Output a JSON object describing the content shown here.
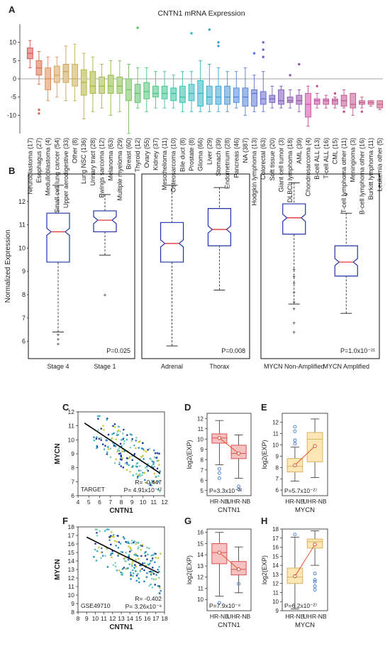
{
  "figure": {
    "panel_labels": [
      "A",
      "B",
      "C",
      "D",
      "E",
      "F",
      "G",
      "H"
    ]
  },
  "chart_data": [
    {
      "panel": "A",
      "type": "box",
      "title": "CNTN1 mRNA Expression",
      "ylim": [
        -15,
        15
      ],
      "yticks": [
        -10,
        -5,
        0,
        5,
        10
      ],
      "grid": false,
      "categories": [
        "Neuroblastoma (17)",
        "Esophagus (27)",
        "Medulloblastoma (4)",
        "Small cell lung cancer (54)",
        "Upper aerodigestive (33)",
        "Other (8)",
        "Lung NSC (136)",
        "Urinary tract (28)",
        "Ewings sarcoma (12)",
        "Melanoma (63)",
        "Multiple myeloma (29)",
        "Breast (60)",
        "Thyroid (12)",
        "Ovary (55)",
        "Kidney (37)",
        "Mesothelioma (11)",
        "Osteosarcoma (10)",
        "Bile duct (8)",
        "Prostate (8)",
        "Glioma (66)",
        "Liver (29)",
        "Stomach (39)",
        "Endometrium (28)",
        "Pancreas (46)",
        "NA (387)",
        "Hodgkin lymphoma (13)",
        "Colorectal (63)",
        "Soft tissue (20)",
        "Giant cell tumor (3)",
        "DLBCL lymphoma (18)",
        "AML (39)",
        "Chondrosarcoma (4)",
        "B-cell ALL (13)",
        "T-cell ALL (16)",
        "CML (15)",
        "T-cell lymphoma other (11)",
        "Meningioma (3)",
        "B-cell lymphoma other (16)",
        "Burkitt lymphoma (11)",
        "Leukemia other (5)"
      ],
      "colors": [
        "#d9534f",
        "#dc6a4a",
        "#e08a52",
        "#d9a057",
        "#caa154",
        "#c9b04e",
        "#b8b23c",
        "#a7b238",
        "#a1b945",
        "#8fba3f",
        "#86bd4c",
        "#73c35a",
        "#58c266",
        "#4fc474",
        "#43c582",
        "#3cc490",
        "#34c29e",
        "#2fc0ad",
        "#2cbcbc",
        "#2fb5c6",
        "#33acd0",
        "#3aa2d6",
        "#4397d8",
        "#4a8bd8",
        "#527fd6",
        "#5a73d2",
        "#6468cc",
        "#6e5fc4",
        "#7c58bc",
        "#8a54b6",
        "#9650b0",
        "#cc4fa6",
        "#c64fa0",
        "#c2509a",
        "#bf5196",
        "#bd5290",
        "#c3578f",
        "#c4588c",
        "#c65a87",
        "#c75c82"
      ],
      "stats": [
        [
          3,
          5.5,
          7,
          8.5,
          10.5
        ],
        [
          -1.5,
          1,
          3,
          5,
          7.5
        ],
        [
          -6,
          -3,
          0,
          3,
          6
        ],
        [
          -5,
          -1,
          1,
          3.5,
          6
        ],
        [
          -6,
          -1,
          2,
          4,
          9
        ],
        [
          -6,
          -2,
          0,
          4,
          9.5
        ],
        [
          -11,
          -4.5,
          -1,
          2.5,
          7
        ],
        [
          -9,
          -4,
          -2,
          2,
          6
        ],
        [
          -8,
          -4,
          -2,
          0.5,
          4
        ],
        [
          -10,
          -4,
          -2,
          1,
          5
        ],
        [
          -9,
          -4,
          -2,
          0.5,
          5
        ],
        [
          -15,
          -6,
          -3,
          0,
          4
        ],
        [
          -8,
          -6.5,
          -4,
          -1.5,
          3
        ],
        [
          -9,
          -5.5,
          -3.5,
          -1,
          3
        ],
        [
          -8,
          -5,
          -4,
          -2,
          2
        ],
        [
          -8,
          -5.5,
          -4,
          -2,
          2
        ],
        [
          -8,
          -6,
          -4,
          -2.5,
          1
        ],
        [
          -9,
          -6.5,
          -5,
          -2,
          2
        ],
        [
          -9,
          -6,
          -4,
          -1.5,
          2
        ],
        [
          -9,
          -7.5,
          -4,
          -0.5,
          5
        ],
        [
          -9,
          -7,
          -5,
          -2,
          4
        ],
        [
          -9,
          -7,
          -5,
          -2,
          3
        ],
        [
          -9,
          -7,
          -5,
          -2,
          2
        ],
        [
          -8,
          -6.5,
          -5,
          -2.5,
          2
        ],
        [
          -10,
          -7.5,
          -5,
          -2.5,
          3
        ],
        [
          -9,
          -7.5,
          -4,
          -3,
          1
        ],
        [
          -9,
          -7,
          -5.5,
          -3.5,
          2
        ],
        [
          -8,
          -6.5,
          -5.5,
          -4.5,
          -2
        ],
        [
          -8,
          -7,
          -6,
          -3,
          -2
        ],
        [
          -8,
          -6.5,
          -6,
          -5,
          -3
        ],
        [
          -9,
          -7,
          -6,
          -4.5,
          -3
        ],
        [
          -13,
          -10.5,
          -7,
          -4,
          -2
        ],
        [
          -8,
          -7,
          -6,
          -5.5,
          -4
        ],
        [
          -8,
          -7,
          -6,
          -5.5,
          -4.5
        ],
        [
          -8,
          -7,
          -6,
          -5.5,
          -5
        ],
        [
          -8,
          -7.5,
          -6,
          -4.5,
          -3
        ],
        [
          -10,
          -8,
          -7,
          -4,
          -4
        ],
        [
          -8,
          -7,
          -6.5,
          -6,
          -5
        ],
        [
          -7.5,
          -7,
          -6.5,
          -6,
          -6
        ],
        [
          -8.5,
          -8,
          -7,
          -6,
          -6
        ]
      ],
      "outliers": [
        {
          "i": 1,
          "y": -8.5
        },
        {
          "i": 1,
          "y": -9.5
        },
        {
          "i": 12,
          "y": 14
        },
        {
          "i": 18,
          "y": 12.5
        },
        {
          "i": 20,
          "y": 13.5
        },
        {
          "i": 21,
          "y": 9
        },
        {
          "i": 21,
          "y": 10
        },
        {
          "i": 25,
          "y": 7
        },
        {
          "i": 26,
          "y": 10
        },
        {
          "i": 26,
          "y": 8
        },
        {
          "i": 26,
          "y": 6
        },
        {
          "i": 29,
          "y": 1
        },
        {
          "i": 30,
          "y": 4
        },
        {
          "i": 32,
          "y": -2
        },
        {
          "i": 34,
          "y": -4
        },
        {
          "i": 35,
          "y": -9
        },
        {
          "i": 37,
          "y": -9
        }
      ]
    },
    {
      "panel": "B",
      "type": "box",
      "ylabel": "Normalized Expression",
      "ylim": [
        5.5,
        13
      ],
      "yticks": [
        6,
        7,
        8,
        9,
        10,
        11,
        12
      ],
      "groups": [
        {
          "categories": [
            "Stage 4",
            "Stage 1"
          ],
          "stats": [
            [
              6.4,
              9.4,
              10.7,
              11.5,
              12.7
            ],
            [
              9.7,
              10.7,
              11.2,
              11.6,
              12.3
            ]
          ],
          "outliers": [
            {
              "i": 0,
              "y": 6.3
            },
            {
              "i": 0,
              "y": 6.1
            },
            {
              "i": 0,
              "y": 5.9
            },
            {
              "i": 1,
              "y": 8
            }
          ],
          "pvalue": "P=0.025"
        },
        {
          "categories": [
            "Adrenal",
            "Thorax"
          ],
          "stats": [
            [
              5.8,
              9.4,
              10.2,
              11.1,
              12.7
            ],
            [
              8.2,
              10.1,
              10.8,
              11.7,
              12.6
            ]
          ],
          "outliers": [],
          "pvalue": "P=0.008"
        },
        {
          "categories": [
            "MYCN Non-Amplified",
            "MYCN Amplified"
          ],
          "stats": [
            [
              7.6,
              10.6,
              11.3,
              11.9,
              12.8
            ],
            [
              7.2,
              8.8,
              9.4,
              10.1,
              11.5
            ]
          ],
          "outliers": [
            {
              "i": 0,
              "y": 9.1
            },
            {
              "i": 0,
              "y": 8.8
            },
            {
              "i": 0,
              "y": 8.5
            },
            {
              "i": 0,
              "y": 8.1
            },
            {
              "i": 0,
              "y": 7.7
            },
            {
              "i": 0,
              "y": 7.4
            },
            {
              "i": 0,
              "y": 6.8
            },
            {
              "i": 0,
              "y": 6.4
            },
            {
              "i": 1,
              "y": 12.3
            }
          ],
          "pvalue": "P=1.0x10⁻²¹"
        }
      ]
    },
    {
      "panel": "C",
      "type": "scatter",
      "xlabel": "CNTN1",
      "ylabel": "MYCN",
      "xlim": [
        4,
        12
      ],
      "ylim": [
        6,
        12
      ],
      "xticks": [
        4,
        5,
        6,
        7,
        8,
        9,
        10,
        11,
        12
      ],
      "yticks": [
        6,
        7,
        8,
        9,
        10,
        11,
        12
      ],
      "dataset": "TARGET",
      "r_text": "R= -0.447",
      "p_text": "P= 4.91x10⁻¹²",
      "regression": [
        [
          4.6,
          11.2
        ],
        [
          11.6,
          7.6
        ]
      ],
      "point_colors": [
        "#1f3f9e",
        "#2b8cbe",
        "#41b6c4",
        "#7fcdbb",
        "#c7c93a"
      ]
    },
    {
      "panel": "D",
      "type": "box",
      "ylabel": "log2(EXP)",
      "xlabel": "CNTN1",
      "categories": [
        "HR-NB",
        "UHR-NB"
      ],
      "ylim": [
        4.5,
        12.5
      ],
      "yticks": [
        5,
        6,
        7,
        8,
        9,
        10,
        11,
        12
      ],
      "stats": [
        [
          7.5,
          9.6,
          10.1,
          10.5,
          11.8
        ],
        [
          6.2,
          8.1,
          8.6,
          9.4,
          10.4
        ]
      ],
      "means": [
        10.1,
        8.6
      ],
      "outliers": [
        {
          "i": 0,
          "y": 7.1
        },
        {
          "i": 0,
          "y": 6.7
        },
        {
          "i": 0,
          "y": 6.2
        },
        {
          "i": 1,
          "y": 5.4
        },
        {
          "i": 1,
          "y": 5.1
        }
      ],
      "pvalue": "P=3.3x10⁻²²"
    },
    {
      "panel": "E",
      "type": "box",
      "ylabel": "log2(EXP)",
      "xlabel": "MYCN",
      "categories": [
        "HR-NB",
        "UHR-NB"
      ],
      "ylim": [
        5.5,
        12.8
      ],
      "yticks": [
        6,
        7,
        8,
        9,
        10,
        11,
        12
      ],
      "stats": [
        [
          6.8,
          7.6,
          8.1,
          8.8,
          9.8
        ],
        [
          7.1,
          8.5,
          10.5,
          11.1,
          12.3
        ]
      ],
      "means": [
        8.2,
        9.9
      ],
      "outliers": [
        {
          "i": 0,
          "y": 11.6
        },
        {
          "i": 0,
          "y": 11.2
        },
        {
          "i": 0,
          "y": 10.4
        },
        {
          "i": 0,
          "y": 10.1
        }
      ],
      "pvalue": "P=5.7x10⁻²⁷"
    },
    {
      "panel": "F",
      "type": "scatter",
      "xlabel": "CNTN1",
      "ylabel": "MYCN",
      "xlim": [
        8,
        18
      ],
      "ylim": [
        8,
        18
      ],
      "xticks": [
        8,
        9,
        10,
        11,
        12,
        13,
        14,
        15,
        16,
        17,
        18
      ],
      "yticks": [
        8,
        9,
        10,
        11,
        12,
        13,
        14,
        15,
        16,
        17,
        18
      ],
      "dataset": "GSE49710",
      "r_text": "R= -0.402",
      "p_text": "P= 3.26x10⁻⁹",
      "regression": [
        [
          9.0,
          16.8
        ],
        [
          17.3,
          12.6
        ]
      ],
      "point_colors": [
        "#1f3f9e",
        "#2b8cbe",
        "#41b6c4",
        "#7fcdbb",
        "#c7c93a"
      ]
    },
    {
      "panel": "G",
      "type": "box",
      "ylabel": "log2(EXP)",
      "xlabel": "CNTN1",
      "categories": [
        "HR-NB",
        "UHR-NB"
      ],
      "ylim": [
        9,
        16.3
      ],
      "yticks": [
        10,
        11,
        12,
        13,
        14,
        15,
        16
      ],
      "stats": [
        [
          10.3,
          13.2,
          14.2,
          15.0,
          16.0
        ],
        [
          10.6,
          12.2,
          12.7,
          13.4,
          14.7
        ]
      ],
      "means": [
        14.2,
        12.7
      ],
      "outliers": [
        {
          "i": 0,
          "y": 9.7
        },
        {
          "i": 1,
          "y": 11.4
        }
      ],
      "pvalue": "P=7.9x10⁻⁸"
    },
    {
      "panel": "H",
      "type": "box",
      "ylabel": "log2(EXP)",
      "xlabel": "MYCN",
      "categories": [
        "HR-NB",
        "UHR-NB"
      ],
      "ylim": [
        9,
        18
      ],
      "yticks": [
        9,
        10,
        11,
        12,
        13,
        14,
        15,
        16,
        17,
        18
      ],
      "stats": [
        [
          9.2,
          12.0,
          12.7,
          13.7,
          17.1
        ],
        [
          14.0,
          15.9,
          16.6,
          16.9,
          17.8
        ]
      ],
      "means": [
        12.8,
        16.3
      ],
      "outliers": [
        {
          "i": 0,
          "y": 17.4
        },
        {
          "i": 1,
          "y": 13.1
        },
        {
          "i": 1,
          "y": 12.4
        },
        {
          "i": 1,
          "y": 12.2
        },
        {
          "i": 1,
          "y": 11.7
        },
        {
          "i": 1,
          "y": 11.3
        }
      ],
      "pvalue": "P=6.2x10⁻²⁷"
    }
  ]
}
